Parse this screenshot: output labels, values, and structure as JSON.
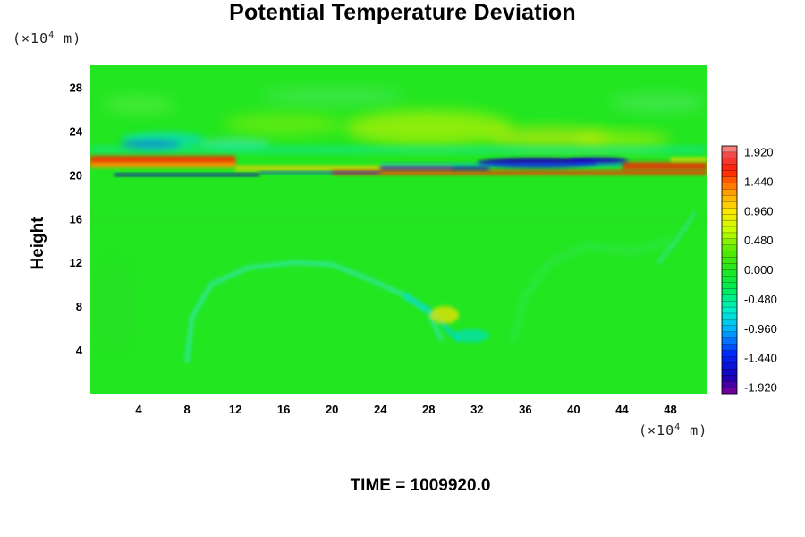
{
  "chart_data": {
    "type": "heatmap",
    "title": "Potential Temperature Deviation",
    "ylabel": "Height",
    "x_unit_pre": "(×10",
    "x_unit_exp": "4",
    "x_unit_post": " m)",
    "y_unit_pre": "(×10",
    "y_unit_exp": "4",
    "y_unit_post": " m)",
    "xlim": [
      0,
      51
    ],
    "ylim": [
      0,
      30
    ],
    "x_ticks": [
      "4",
      "8",
      "12",
      "16",
      "20",
      "24",
      "28",
      "32",
      "36",
      "40",
      "44",
      "48"
    ],
    "y_ticks": [
      "4",
      "8",
      "12",
      "16",
      "20",
      "24",
      "28"
    ],
    "colorbar": {
      "min": -1.92,
      "max": 1.92,
      "labels": [
        "1.920",
        "1.440",
        "0.960",
        "0.480",
        "0.000",
        "-0.480",
        "-0.960",
        "-1.440",
        "-1.920"
      ]
    },
    "time_label": "TIME = 1009920.0",
    "features": [
      "broad background near 0.000 across most of the domain",
      "strong positive band just above 20 (x 10^4 m) height",
      "strong negative band near 21 (x 10^4 m) height, most intense around x = 34-40",
      "weak wavy positive/negative patterns between 22 and 28 (x 10^4 m)",
      "weak negative arcs in the lower layer around x = 8-16 and x = 28-32"
    ]
  }
}
